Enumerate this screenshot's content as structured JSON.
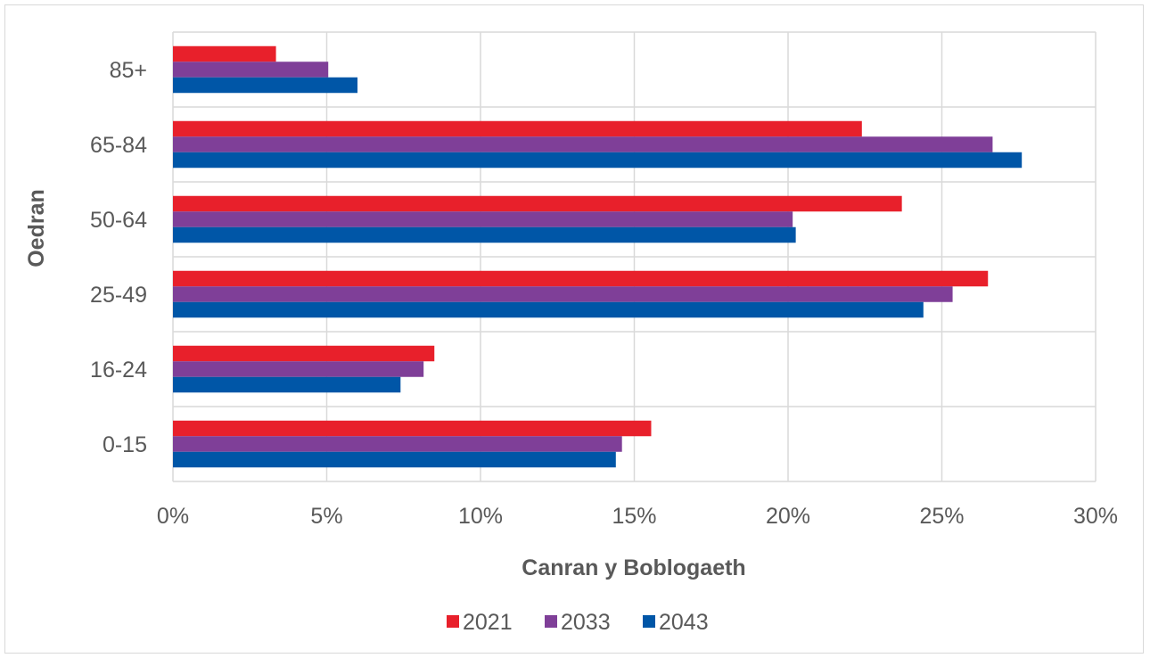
{
  "chart_data": {
    "type": "bar",
    "orientation": "horizontal",
    "categories": [
      "0-15",
      "16-24",
      "25-49",
      "50-64",
      "65-84",
      "85+"
    ],
    "series": [
      {
        "name": "2021",
        "color": "#e8202b",
        "values": [
          15.55,
          8.5,
          26.5,
          23.7,
          22.4,
          3.35
        ]
      },
      {
        "name": "2033",
        "color": "#7f3f98",
        "values": [
          14.6,
          8.15,
          25.35,
          20.15,
          26.65,
          5.05
        ]
      },
      {
        "name": "2043",
        "color": "#0056a7",
        "values": [
          14.4,
          7.4,
          24.4,
          20.25,
          27.6,
          6.0
        ]
      }
    ],
    "xlim": [
      0,
      30
    ],
    "xticks": [
      0,
      5,
      10,
      15,
      20,
      25,
      30
    ],
    "xtick_labels": [
      "0%",
      "5%",
      "10%",
      "15%",
      "20%",
      "25%",
      "30%"
    ],
    "xlabel": "Canran y Boblogaeth",
    "ylabel": "Oedran",
    "grid": true,
    "legend_position": "bottom"
  }
}
